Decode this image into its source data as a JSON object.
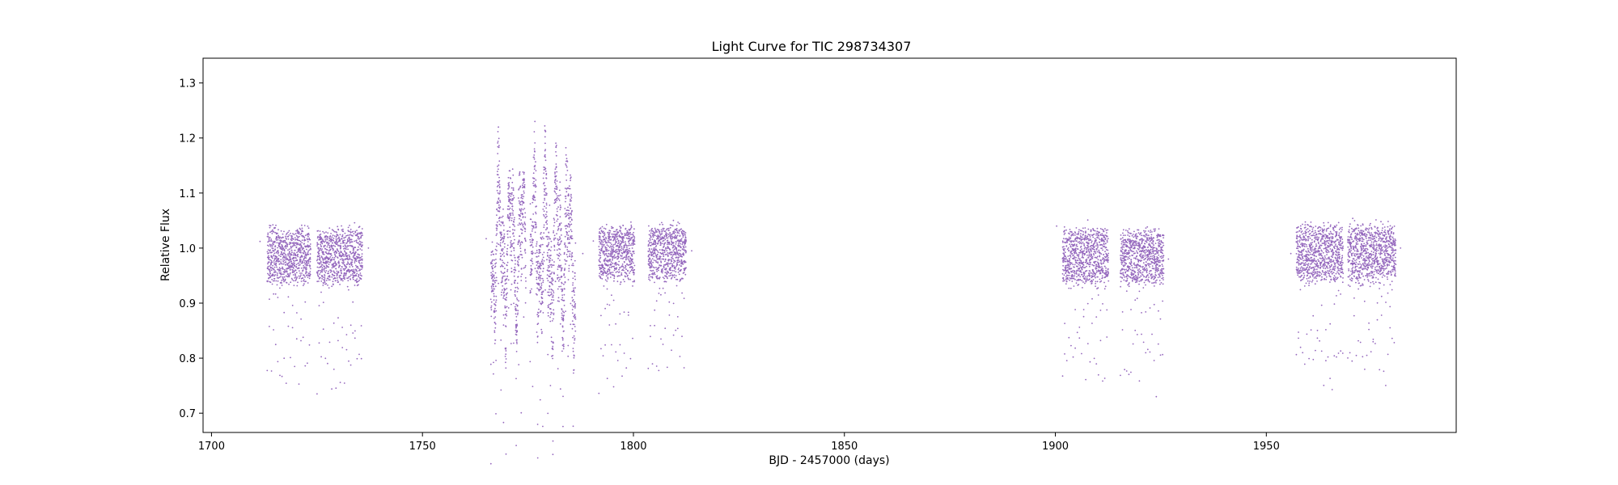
{
  "chart_data": {
    "type": "scatter",
    "title": "Light Curve for TIC 298734307",
    "xlabel": "BJD - 2457000 (days)",
    "ylabel": "Relative Flux",
    "xlim": [
      1698,
      1995
    ],
    "ylim": [
      0.665,
      1.345
    ],
    "xticks": [
      1700,
      1750,
      1800,
      1850,
      1900,
      1950
    ],
    "yticks": [
      0.7,
      0.8,
      0.9,
      1.0,
      1.1,
      1.2,
      1.3
    ],
    "grid": false,
    "legend": "none",
    "marker_color": "#9467bd",
    "segments": [
      {
        "x_start": 1713.2,
        "x_end": 1723.5,
        "baseline": 0.985,
        "scatter": 0.05,
        "dip_min": 0.77,
        "dip_period": 0.5,
        "variable": false
      },
      {
        "x_start": 1725.0,
        "x_end": 1735.8,
        "baseline": 0.985,
        "scatter": 0.05,
        "dip_min": 0.775,
        "dip_period": 0.5,
        "variable": false
      },
      {
        "x_start": 1766.2,
        "x_end": 1774.5,
        "baseline": 1.0,
        "scatter": 0.08,
        "dip_min": 0.72,
        "dip_period": 0.6,
        "variable": true
      },
      {
        "x_start": 1775.5,
        "x_end": 1786.3,
        "baseline": 1.0,
        "scatter": 0.09,
        "dip_min": 0.74,
        "dip_period": 0.6,
        "variable": true
      },
      {
        "x_start": 1791.8,
        "x_end": 1800.3,
        "baseline": 0.99,
        "scatter": 0.05,
        "dip_min": 0.775,
        "dip_period": 0.5,
        "variable": false
      },
      {
        "x_start": 1803.5,
        "x_end": 1812.5,
        "baseline": 0.99,
        "scatter": 0.05,
        "dip_min": 0.775,
        "dip_period": 0.5,
        "variable": false
      },
      {
        "x_start": 1901.7,
        "x_end": 1912.6,
        "baseline": 0.985,
        "scatter": 0.05,
        "dip_min": 0.77,
        "dip_period": 0.5,
        "variable": false
      },
      {
        "x_start": 1915.4,
        "x_end": 1925.7,
        "baseline": 0.985,
        "scatter": 0.05,
        "dip_min": 0.77,
        "dip_period": 0.5,
        "variable": false
      },
      {
        "x_start": 1957.1,
        "x_end": 1968.2,
        "baseline": 0.99,
        "scatter": 0.05,
        "dip_min": 0.78,
        "dip_period": 0.5,
        "variable": false
      },
      {
        "x_start": 1969.3,
        "x_end": 1980.7,
        "baseline": 0.99,
        "scatter": 0.05,
        "dip_min": 0.78,
        "dip_period": 0.5,
        "variable": false
      }
    ],
    "outliers": [
      {
        "x": 1711.5,
        "y": 1.012
      },
      {
        "x": 1737.2,
        "y": 1.0
      },
      {
        "x": 1765.1,
        "y": 1.017
      },
      {
        "x": 1788.0,
        "y": 0.99
      },
      {
        "x": 1790.5,
        "y": 1.013
      },
      {
        "x": 1813.8,
        "y": 0.995
      },
      {
        "x": 1900.3,
        "y": 1.04
      },
      {
        "x": 1926.8,
        "y": 0.98
      },
      {
        "x": 1955.8,
        "y": 0.99
      },
      {
        "x": 1981.8,
        "y": 1.0
      }
    ]
  }
}
